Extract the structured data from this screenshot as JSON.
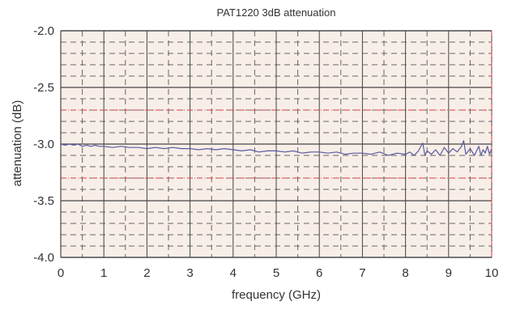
{
  "chart_data": {
    "type": "line",
    "title": "PAT1220 3dB attenuation",
    "xlabel": "frequency (GHz)",
    "ylabel": "attenuation (dB)",
    "xlim": [
      0,
      10
    ],
    "ylim": [
      -4.0,
      -2.0
    ],
    "x_ticks": [
      0,
      1,
      2,
      3,
      4,
      5,
      6,
      7,
      8,
      9,
      10
    ],
    "x_tick_labels": [
      "0",
      "1",
      "2",
      "3",
      "4",
      "5",
      "6",
      "7",
      "8",
      "9",
      "10"
    ],
    "y_ticks": [
      -2.0,
      -2.5,
      -3.0,
      -3.5,
      -4.0
    ],
    "y_tick_labels": [
      "-2.0",
      "-2.5",
      "-3.0",
      "-3.5",
      "-4.0"
    ],
    "grid": true,
    "limit_lines": [
      -2.7,
      -3.3
    ],
    "colors": {
      "plot_background": "#f8eee8",
      "major_grid": "#444444",
      "minor_grid": "#666666",
      "limit_line": "#e33b3b",
      "series_line": "#5a5aa0"
    },
    "series": [
      {
        "x": [
          0.0,
          0.1,
          0.2,
          0.3,
          0.4,
          0.5,
          0.6,
          0.7,
          0.8,
          0.9,
          1.0,
          1.2,
          1.4,
          1.6,
          1.8,
          2.0,
          2.2,
          2.4,
          2.6,
          2.8,
          3.0,
          3.2,
          3.4,
          3.6,
          3.8,
          4.0,
          4.2,
          4.4,
          4.6,
          4.8,
          5.0,
          5.2,
          5.4,
          5.6,
          5.8,
          6.0,
          6.2,
          6.4,
          6.6,
          6.8,
          7.0,
          7.2,
          7.4,
          7.6,
          7.8,
          8.0,
          8.1,
          8.2,
          8.3,
          8.4,
          8.45,
          8.5,
          8.6,
          8.7,
          8.8,
          8.9,
          9.0,
          9.1,
          9.2,
          9.3,
          9.35,
          9.4,
          9.5,
          9.6,
          9.7,
          9.75,
          9.8,
          9.85,
          9.9,
          9.95,
          10.0
        ],
        "y": [
          -3.0,
          -3.01,
          -3.0,
          -3.01,
          -3.0,
          -3.02,
          -3.01,
          -3.02,
          -3.01,
          -3.02,
          -3.02,
          -3.03,
          -3.02,
          -3.03,
          -3.03,
          -3.04,
          -3.03,
          -3.04,
          -3.03,
          -3.04,
          -3.04,
          -3.05,
          -3.04,
          -3.05,
          -3.04,
          -3.05,
          -3.06,
          -3.05,
          -3.07,
          -3.06,
          -3.06,
          -3.07,
          -3.06,
          -3.08,
          -3.07,
          -3.07,
          -3.08,
          -3.07,
          -3.09,
          -3.08,
          -3.08,
          -3.09,
          -3.07,
          -3.1,
          -3.08,
          -3.09,
          -3.07,
          -3.1,
          -3.06,
          -2.99,
          -3.1,
          -3.06,
          -3.09,
          -3.05,
          -3.1,
          -3.03,
          -3.08,
          -3.04,
          -3.07,
          -3.02,
          -2.97,
          -3.09,
          -3.04,
          -3.1,
          -3.02,
          -3.1,
          -3.05,
          -3.08,
          -3.02,
          -3.09,
          -3.04
        ]
      }
    ]
  }
}
